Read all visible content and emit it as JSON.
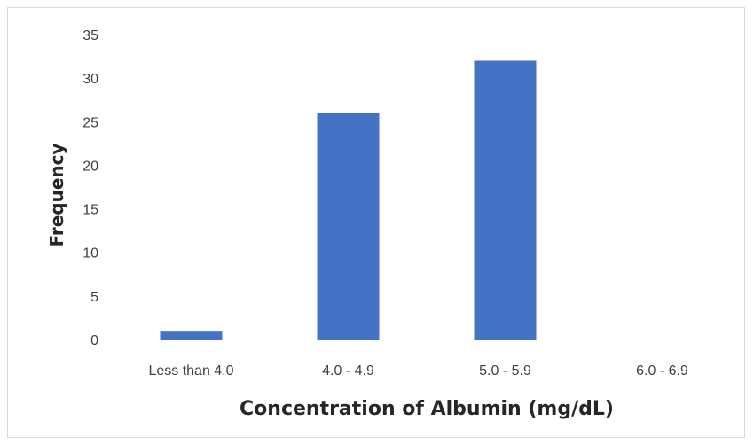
{
  "chart_data": {
    "type": "bar",
    "categories": [
      "Less than 4.0",
      "4.0 - 4.9",
      "5.0 - 5.9",
      "6.0 - 6.9"
    ],
    "values": [
      1,
      26,
      32,
      0
    ],
    "title": "",
    "xlabel": "Concentration of Albumin (mg/dL)",
    "ylabel": "Frequency",
    "ylim": [
      0,
      35
    ],
    "yticks": [
      0,
      5,
      10,
      15,
      20,
      25,
      30,
      35
    ],
    "grid": false,
    "legend": "none",
    "bar_color": "#4472c4",
    "axis_color": "#d9d9d9"
  }
}
